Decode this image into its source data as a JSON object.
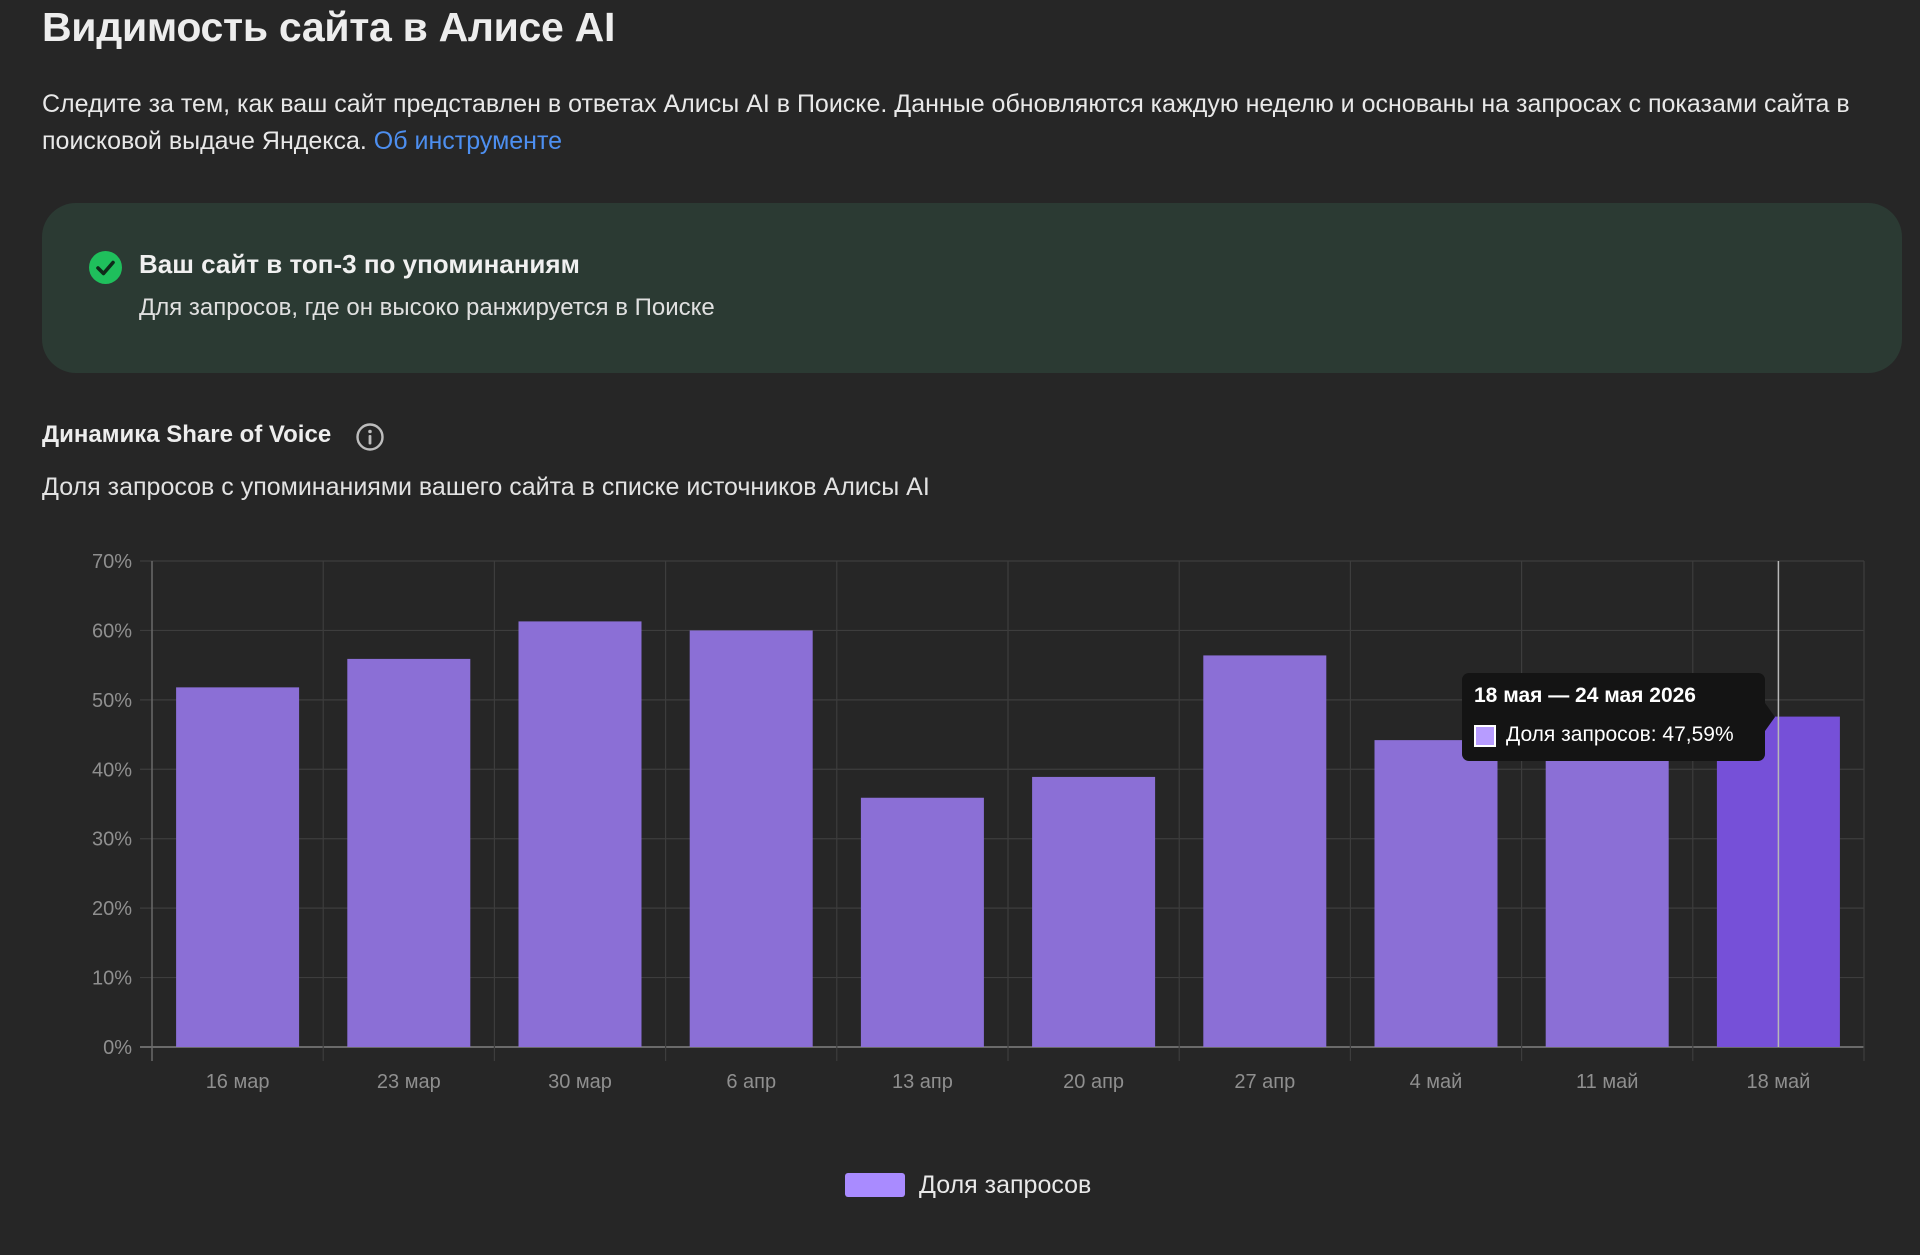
{
  "page": {
    "title": "Видимость сайта в Алисе AI",
    "description": "Следите за тем, как ваш сайт представлен в ответах Алисы AI в Поиске. Данные обновляются каждую неделю и основаны на запросах с показами сайта в поисковой выдаче Яндекса.",
    "about_link": "Об инструменте"
  },
  "status": {
    "icon": "check-circle-icon",
    "title": "Ваш сайт в топ-3 по упоминаниям",
    "subtitle": "Для запросов, где он высоко ранжируется в Поиске",
    "color": "#1fbf5c"
  },
  "section": {
    "title": "Динамика Share of Voice",
    "info_icon": "info-icon",
    "subtitle": "Доля запросов с упоминаниями вашего сайта в списке источников Алисы AI"
  },
  "tooltip": {
    "title": "18 мая — 24 мая 2026",
    "label": "Доля запросов: 47,59%"
  },
  "colors": {
    "bar": "#8b6fd6",
    "bar_active": "#7650d8",
    "legend": "#a98bff",
    "link": "#4d8ff0"
  },
  "chart_data": {
    "type": "bar",
    "categories": [
      "16 мар",
      "23 мар",
      "30 мар",
      "6 апр",
      "13 апр",
      "20 апр",
      "27 апр",
      "4 май",
      "11 май",
      "18 май"
    ],
    "series": [
      {
        "name": "Доля запросов",
        "values": [
          51.8,
          55.9,
          61.3,
          60.0,
          35.9,
          38.9,
          56.4,
          44.2,
          43.8,
          47.59
        ]
      }
    ],
    "y_ticks": [
      "0%",
      "10%",
      "20%",
      "30%",
      "40%",
      "50%",
      "60%",
      "70%"
    ],
    "ylim": [
      0,
      70
    ],
    "grid": true,
    "legend_position": "bottom-center",
    "highlighted_index": 9
  }
}
